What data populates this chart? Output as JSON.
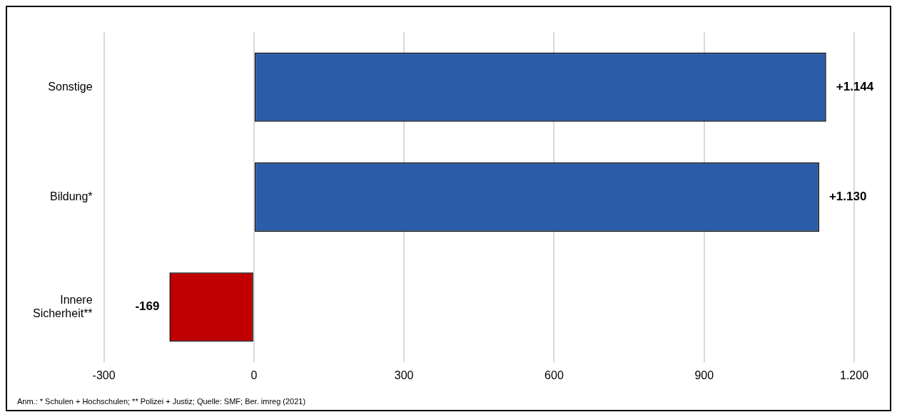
{
  "chart_data": {
    "type": "bar",
    "orientation": "horizontal",
    "categories": [
      "Sonstige",
      "Bildung*",
      "Innere Sicherheit**"
    ],
    "values": [
      1144,
      1130,
      -169
    ],
    "colors": [
      "#2a5ca8",
      "#2a5ca8",
      "#c00000"
    ],
    "value_labels": [
      "+1.144",
      "+1.130",
      "-169"
    ],
    "xlim": [
      -300,
      1200
    ],
    "xticks": [
      -300,
      0,
      300,
      600,
      900,
      {
        "value": 1200,
        "label": "1.200"
      }
    ],
    "grid": "x",
    "legend": false,
    "annotations": [
      "Anm.: * Schulen + Hochschulen; ** Polizei + Justiz; Quelle: SMF; Ber. imreg (2021)"
    ]
  }
}
